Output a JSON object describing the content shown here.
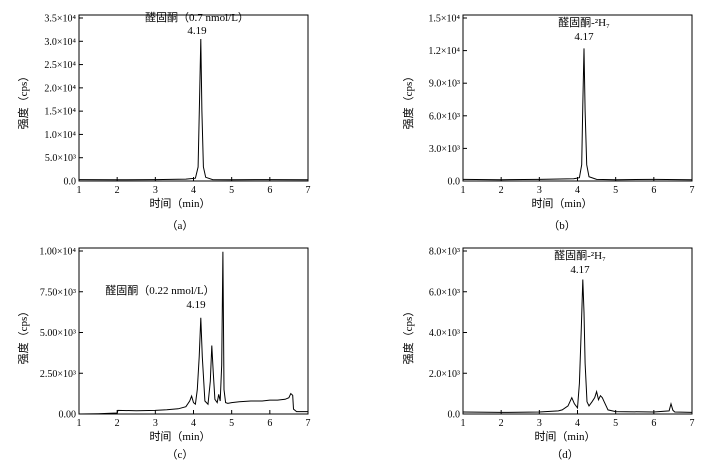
{
  "chart_data": [
    {
      "type": "line",
      "panel_label": "（a）",
      "xlabel": "时间（min）",
      "ylabel": "强度（cps）",
      "xlim": [
        1,
        7
      ],
      "ylim": [
        0,
        35000
      ],
      "x_ticks": [
        "1",
        "2",
        "3",
        "4",
        "5",
        "6",
        "7"
      ],
      "y_ticks": [
        {
          "value": 0,
          "label": "0.0"
        },
        {
          "value": 5000,
          "label": "5.0×10³"
        },
        {
          "value": 10000,
          "label": "1.0×10⁴"
        },
        {
          "value": 15000,
          "label": "1.5×10⁴"
        },
        {
          "value": 20000,
          "label": "2.0×10⁴"
        },
        {
          "value": 25000,
          "label": "2.5×10⁴"
        },
        {
          "value": 30000,
          "label": "3.0×10⁴"
        },
        {
          "value": 35000,
          "label": "3.5×10⁴"
        }
      ],
      "annotation": {
        "name": "醛固酮（0.7 nmol/L）",
        "rt": "4.19",
        "x": 4.19,
        "y": 31000
      },
      "series": [
        {
          "x": [
            1.0,
            2.0,
            3.0,
            3.8,
            4.05,
            4.12,
            4.16,
            4.19,
            4.22,
            4.26,
            4.32,
            4.5,
            5.0,
            6.0,
            7.0
          ],
          "y": [
            300,
            250,
            300,
            400,
            600,
            3000,
            18000,
            30500,
            15000,
            3000,
            800,
            300,
            250,
            300,
            250
          ]
        }
      ]
    },
    {
      "type": "line",
      "panel_label": "（b）",
      "xlabel": "时间（min）",
      "ylabel": "强度（cps）",
      "xlim": [
        1,
        7
      ],
      "ylim": [
        0,
        15000
      ],
      "x_ticks": [
        "1",
        "2",
        "3",
        "4",
        "5",
        "6",
        "7"
      ],
      "y_ticks": [
        {
          "value": 0,
          "label": "0.0"
        },
        {
          "value": 3000,
          "label": "3.0×10³"
        },
        {
          "value": 6000,
          "label": "6.0×10³"
        },
        {
          "value": 9000,
          "label": "9.0×10³"
        },
        {
          "value": 12000,
          "label": "1.2×10⁴"
        },
        {
          "value": 15000,
          "label": "1.5×10⁴"
        }
      ],
      "annotation": {
        "name": "醛固酮-²H₇",
        "rt": "4.17",
        "x": 4.17,
        "y": 12300
      },
      "series": [
        {
          "x": [
            1.0,
            2.0,
            3.0,
            3.9,
            4.05,
            4.11,
            4.14,
            4.17,
            4.2,
            4.24,
            4.3,
            4.5,
            5.0,
            6.0,
            7.0
          ],
          "y": [
            150,
            120,
            150,
            200,
            300,
            1500,
            7000,
            12200,
            6500,
            1500,
            400,
            150,
            120,
            150,
            120
          ]
        }
      ]
    },
    {
      "type": "line",
      "panel_label": "（c）",
      "xlabel": "时间（min）",
      "ylabel": "强度（cps）",
      "xlim": [
        1,
        7
      ],
      "ylim": [
        0,
        10000
      ],
      "x_ticks": [
        "1",
        "2",
        "3",
        "4",
        "5",
        "6",
        "7"
      ],
      "y_ticks": [
        {
          "value": 0,
          "label": "0.00"
        },
        {
          "value": 2500,
          "label": "2.50×10³"
        },
        {
          "value": 5000,
          "label": "5.00×10³"
        },
        {
          "value": 7500,
          "label": "7.50×10³"
        },
        {
          "value": 10000,
          "label": "1.00×10⁴"
        }
      ],
      "annotation": {
        "name": "醛固酮（0.22 nmol/L）",
        "rt": "4.19",
        "x": 4.19,
        "y": 5900
      },
      "series": [
        {
          "x": [
            1.0,
            1.5,
            2.0,
            2.02,
            2.5,
            3.0,
            3.3,
            3.6,
            3.8,
            3.9,
            3.95,
            4.0,
            4.05,
            4.1,
            4.15,
            4.19,
            4.23,
            4.3,
            4.38,
            4.44,
            4.48,
            4.52,
            4.56,
            4.62,
            4.66,
            4.7,
            4.74,
            4.77,
            4.8,
            4.84,
            4.9,
            5.0,
            5.2,
            5.5,
            5.8,
            6.0,
            6.2,
            6.4,
            6.5,
            6.55,
            6.6,
            6.62,
            6.7,
            7.0
          ],
          "y": [
            0,
            20,
            60,
            220,
            200,
            220,
            260,
            320,
            450,
            800,
            1100,
            700,
            600,
            1500,
            3500,
            5900,
            3500,
            800,
            600,
            2000,
            4200,
            2500,
            900,
            700,
            1200,
            800,
            3000,
            9950,
            1500,
            700,
            650,
            700,
            750,
            800,
            800,
            850,
            850,
            900,
            1000,
            1250,
            1150,
            300,
            150,
            150
          ]
        }
      ]
    },
    {
      "type": "line",
      "panel_label": "（d）",
      "xlabel": "时间（min）",
      "ylabel": "强度（cps）",
      "xlim": [
        1,
        7
      ],
      "ylim": [
        0,
        8000
      ],
      "x_ticks": [
        "1",
        "2",
        "3",
        "4",
        "5",
        "6",
        "7"
      ],
      "y_ticks": [
        {
          "value": 0,
          "label": "0.0"
        },
        {
          "value": 2000,
          "label": "2.0×10³"
        },
        {
          "value": 4000,
          "label": "4.0×10³"
        },
        {
          "value": 6000,
          "label": "6.0×10³"
        },
        {
          "value": 8000,
          "label": "8.0×10³"
        }
      ],
      "annotation": {
        "name": "醛固酮-²H₇",
        "rt": "4.17",
        "x": 4.17,
        "y": 6700
      },
      "series": [
        {
          "x": [
            1.0,
            2.0,
            3.0,
            3.5,
            3.6,
            3.75,
            3.85,
            3.92,
            4.0,
            4.05,
            4.1,
            4.14,
            4.17,
            4.2,
            4.25,
            4.3,
            4.38,
            4.45,
            4.5,
            4.55,
            4.6,
            4.65,
            4.7,
            4.8,
            5.0,
            6.0,
            6.4,
            6.45,
            6.5,
            6.55,
            7.0
          ],
          "y": [
            100,
            80,
            100,
            150,
            200,
            400,
            800,
            500,
            300,
            1500,
            4200,
            6600,
            5000,
            2500,
            600,
            400,
            600,
            800,
            1100,
            700,
            900,
            800,
            600,
            200,
            120,
            100,
            150,
            500,
            180,
            100,
            80
          ]
        }
      ]
    }
  ]
}
